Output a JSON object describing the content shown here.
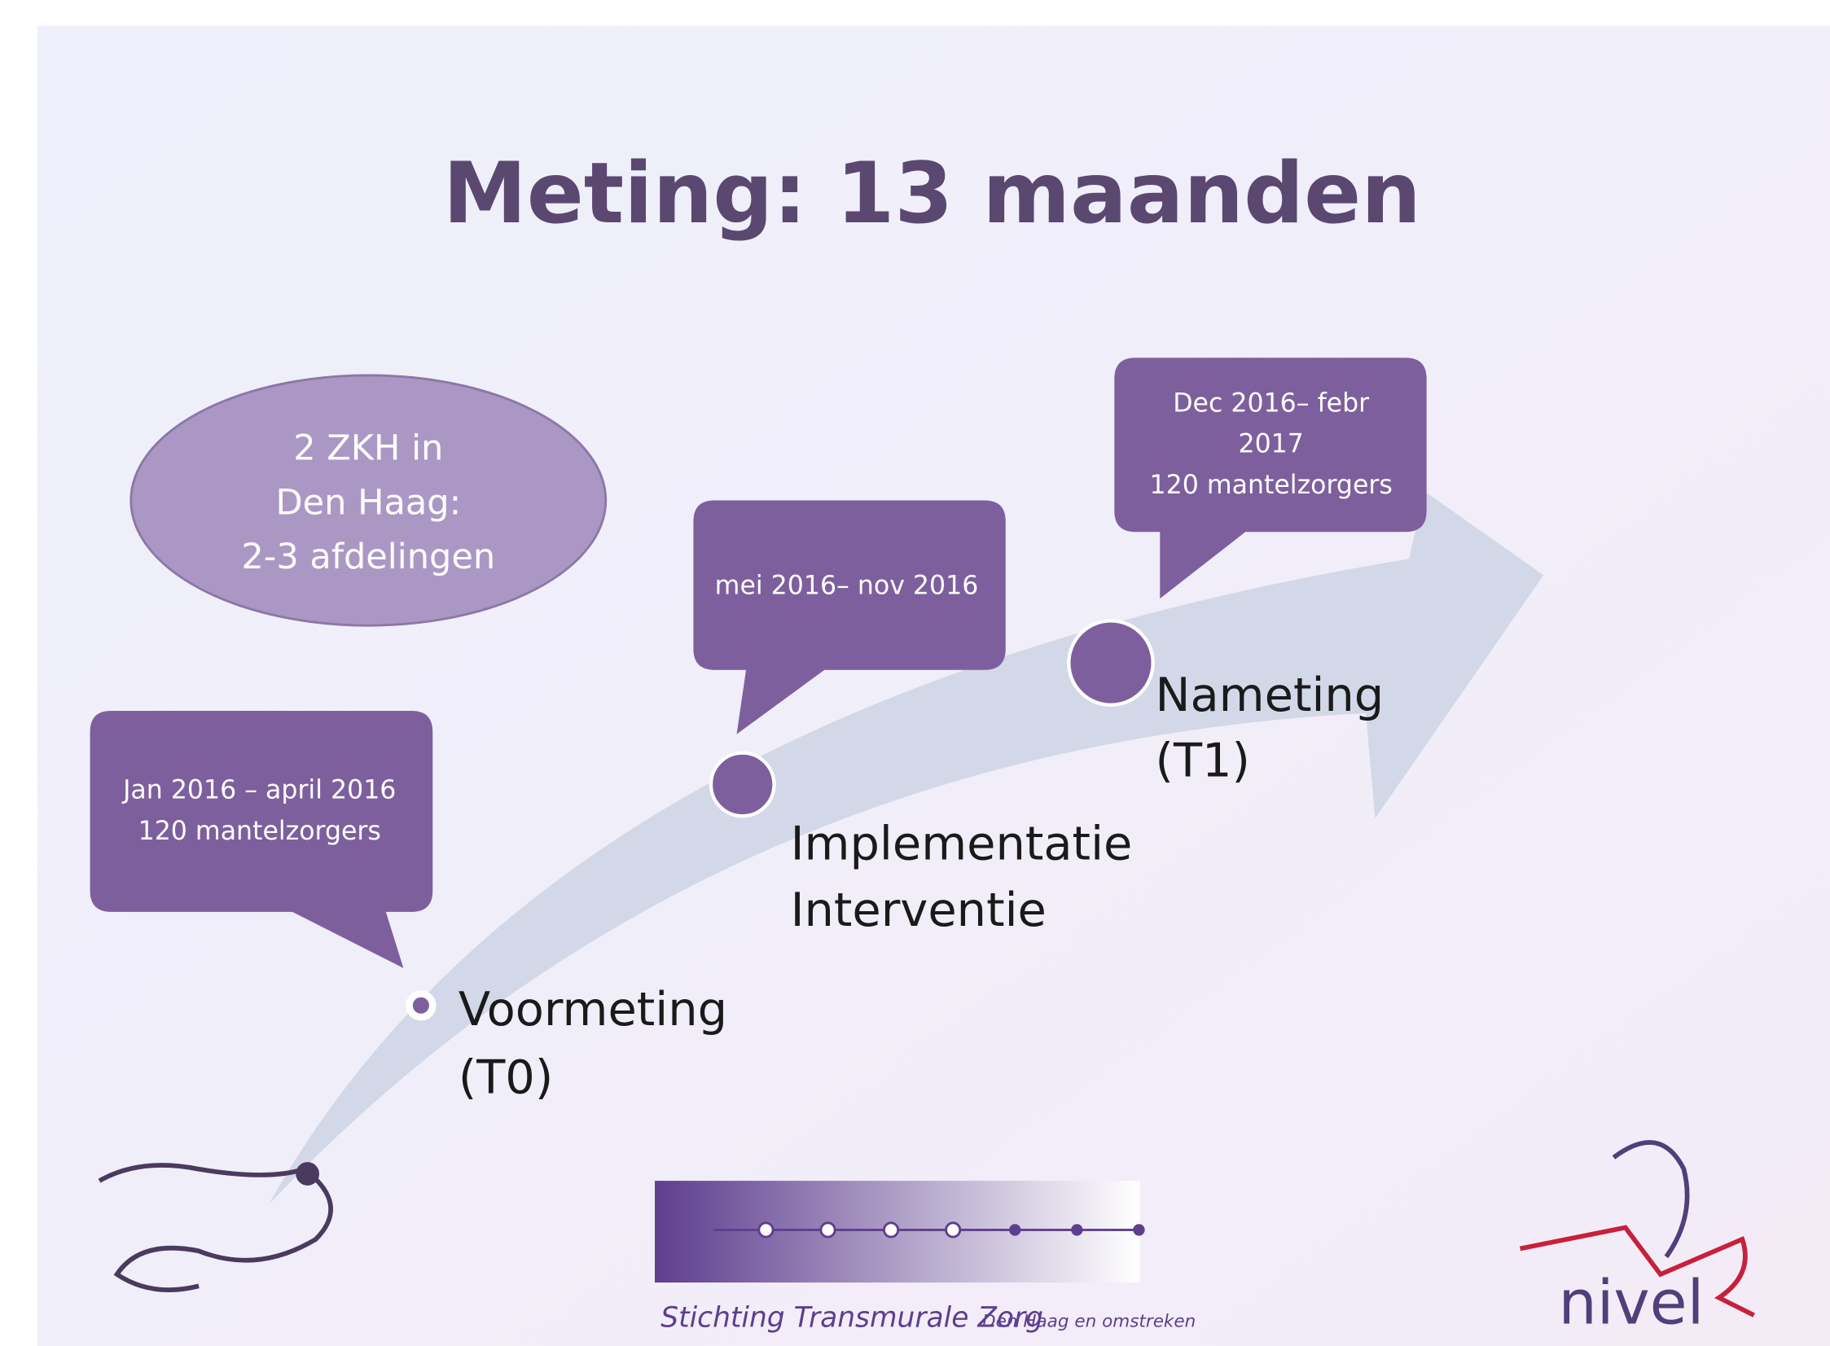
{
  "title": "Meting: 13 maanden",
  "ellipse": {
    "lines": [
      "2 ZKH in",
      "Den Haag:",
      "2-3 afdelingen"
    ]
  },
  "callouts": [
    {
      "lines": [
        "Jan 2016 – april 2016",
        "120 mantelzorgers"
      ]
    },
    {
      "lines": [
        "mei 2016– nov 2016"
      ]
    },
    {
      "lines": [
        "Dec 2016– febr",
        "2017",
        "120 mantelzorgers"
      ]
    }
  ],
  "milestones": [
    {
      "lines": [
        "Voormeting",
        "(T0)"
      ]
    },
    {
      "lines": [
        "Implementatie",
        "Interventie"
      ]
    },
    {
      "lines": [
        "Nameting",
        "(T1)"
      ]
    }
  ],
  "footer": {
    "organization": "Stichting Transmurale Zorg",
    "region": "Den Haag en omstreken",
    "logo": "nivel"
  }
}
